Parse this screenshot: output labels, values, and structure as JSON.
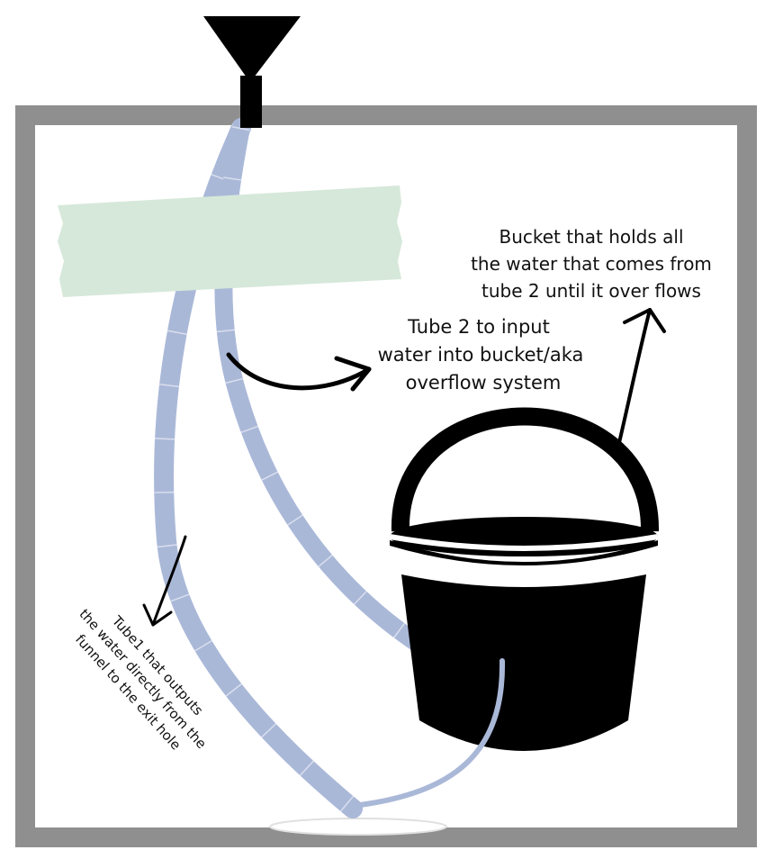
{
  "colors": {
    "frame": "#8f8f8f",
    "background": "#ffffff",
    "tube": "#aab8d8",
    "tube_mark": "#ffffff",
    "tape": "#d6e8da",
    "black": "#000000",
    "bucket_fill": "#000000"
  },
  "labels": {
    "bucket": {
      "line1": "Bucket that holds all",
      "line2": "the water that comes from",
      "line3": "tube 2 until it over flows"
    },
    "tube2": {
      "line1": "Tube 2 to input",
      "line2": "water into bucket/aka",
      "line3": "overflow system"
    },
    "tube1": {
      "line1": "Tube1 that outputs",
      "line2": "the water directly from the",
      "line3": "funnel to the exit hole"
    }
  },
  "icons": {
    "funnel": "funnel-icon",
    "bucket": "bucket-icon",
    "tape": "tape-strip",
    "exit_hole": "exit-hole"
  }
}
